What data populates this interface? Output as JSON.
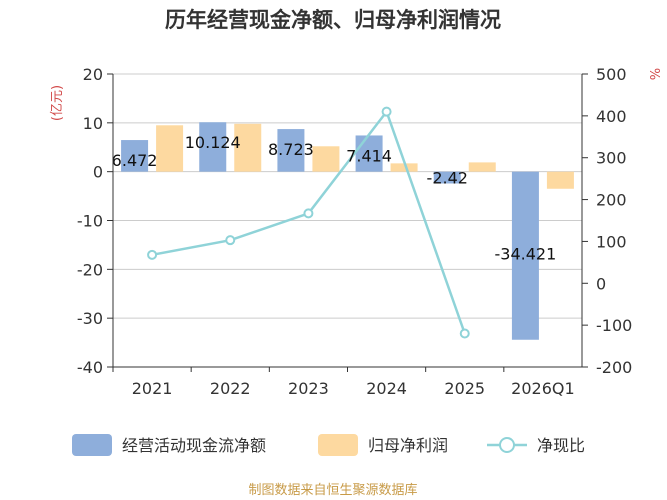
{
  "chart_data": {
    "type": "bar",
    "title": "历年经营现金净额、归母净利润情况",
    "categories": [
      "2021",
      "2022",
      "2023",
      "2024",
      "2025",
      "2026Q1"
    ],
    "left_axis": {
      "unit": "(亿元)",
      "ylim": [
        -40,
        20
      ],
      "ticks": [
        20,
        10,
        0,
        -10,
        -20,
        -30,
        -40
      ],
      "tick_labels": [
        "20",
        "10",
        "0",
        "-10",
        "-20",
        "-30",
        "-40"
      ]
    },
    "right_axis": {
      "unit": "%",
      "ylim": [
        -200,
        500
      ],
      "ticks": [
        500,
        400,
        300,
        200,
        100,
        0,
        -100,
        -200
      ],
      "tick_labels": [
        "500",
        "400",
        "300",
        "200",
        "100",
        "0",
        "-100",
        "-200"
      ]
    },
    "series": [
      {
        "name": "经营活动现金流净额",
        "type": "bar",
        "axis": "left",
        "color": "#8eaedb",
        "values": [
          6.472,
          10.124,
          8.723,
          7.414,
          -2.42,
          -34.421
        ],
        "labels": [
          "6.472",
          "10.124",
          "8.723",
          "7.414",
          "-2.42",
          "-34.421"
        ]
      },
      {
        "name": "归母净利润",
        "type": "bar",
        "axis": "left",
        "color": "#fdd9a0",
        "values": [
          9.5,
          9.8,
          5.2,
          1.7,
          1.9,
          -3.5
        ]
      },
      {
        "name": "净现比",
        "type": "line",
        "axis": "right",
        "color": "#8fd3d8",
        "values": [
          68,
          103,
          167,
          410,
          null,
          -120
        ],
        "x_index": [
          0,
          1,
          2,
          3,
          null,
          4
        ]
      }
    ],
    "net_ratio_points": [
      {
        "x": "2021",
        "y": 68
      },
      {
        "x": "2022",
        "y": 103
      },
      {
        "x": "2023",
        "y": 167
      },
      {
        "x": "2024",
        "y": 410
      },
      {
        "x": "2025",
        "y": -120
      }
    ],
    "legend_position": "bottom",
    "grid": true,
    "source": "制图数据来自恒生聚源数据库"
  }
}
